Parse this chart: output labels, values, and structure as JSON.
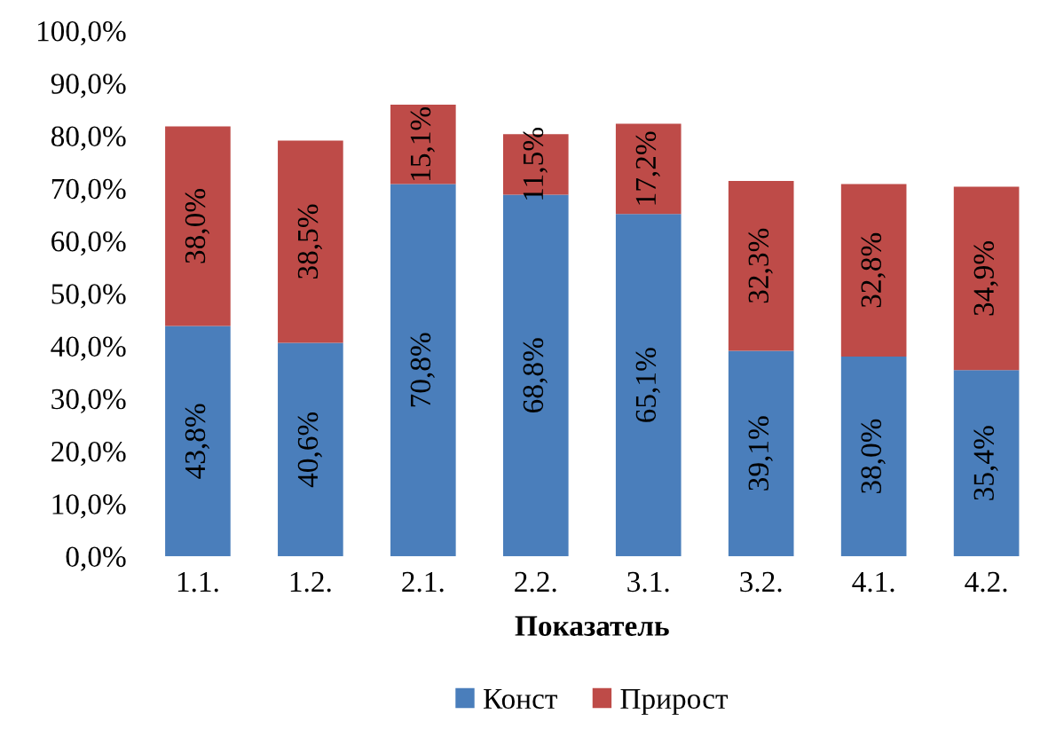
{
  "chart_data": {
    "type": "bar",
    "stacked": true,
    "xlabel": "Показатель",
    "categories": [
      "1.1.",
      "1.2.",
      "2.1.",
      "2.2.",
      "3.1.",
      "3.2.",
      "4.1.",
      "4.2."
    ],
    "series": [
      {
        "name": "Конст",
        "color": "#4a7ebb",
        "values": [
          43.8,
          40.6,
          70.8,
          68.8,
          65.1,
          39.1,
          38.0,
          35.4
        ],
        "value_labels": [
          "43,8%",
          "40,6%",
          "70,8%",
          "68,8%",
          "65,1%",
          "39,1%",
          "38,0%",
          "35,4%"
        ]
      },
      {
        "name": "Прирост",
        "color": "#be4b48",
        "values": [
          38.0,
          38.5,
          15.1,
          11.5,
          17.2,
          32.3,
          32.8,
          34.9
        ],
        "value_labels": [
          "38,0%",
          "38,5%",
          "15,1%",
          "11,5%",
          "17,2%",
          "32,3%",
          "32,8%",
          "34,9%"
        ]
      }
    ],
    "ylim": [
      0,
      100
    ],
    "yticks": [
      {
        "value": 0,
        "label": "0,0%"
      },
      {
        "value": 10,
        "label": "10,0%"
      },
      {
        "value": 20,
        "label": "20,0%"
      },
      {
        "value": 30,
        "label": "30,0%"
      },
      {
        "value": 40,
        "label": "40,0%"
      },
      {
        "value": 50,
        "label": "50,0%"
      },
      {
        "value": 60,
        "label": "60,0%"
      },
      {
        "value": 70,
        "label": "70,0%"
      },
      {
        "value": 80,
        "label": "80,0%"
      },
      {
        "value": 90,
        "label": "90,0%"
      },
      {
        "value": 100,
        "label": "100,0%"
      }
    ],
    "grid": false,
    "legend": "bottom"
  }
}
